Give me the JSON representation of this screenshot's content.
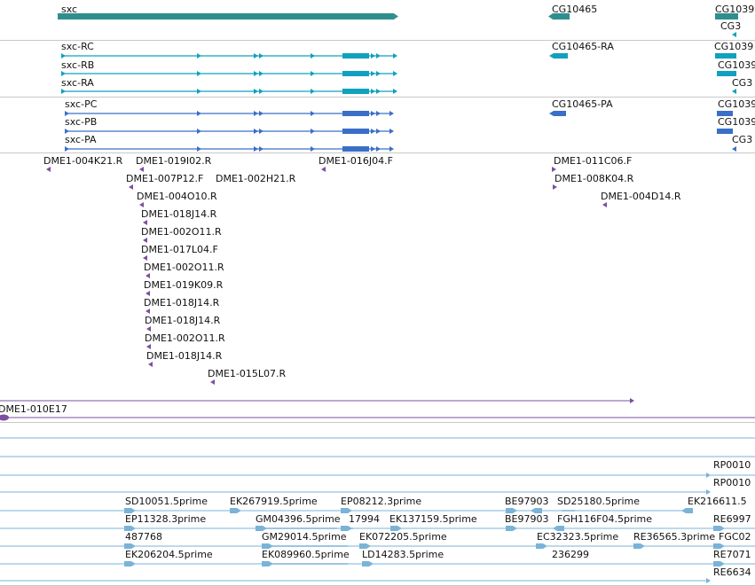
{
  "colors": {
    "gene": "#2f8f8f",
    "transcript_rna": "#11a1bd",
    "transcript_protein": "#3a6fc8",
    "cdna": "#7a4fa0",
    "est": "#7ab3d8",
    "separator": "#c8c8c8"
  },
  "gene_track": {
    "items": [
      {
        "label": "sxc",
        "x1": 65,
        "x2": 447,
        "dir": "right",
        "thick": true
      },
      {
        "label": "CG10465",
        "x1": 620,
        "x2": 642,
        "dir": "left",
        "thick": true
      },
      {
        "label": "CG1039",
        "x1": 808,
        "x2": 830,
        "dir": "right",
        "thick": true
      },
      {
        "label": "CG3",
        "x1": 824,
        "x2": 833,
        "dir": "left",
        "thick": false
      }
    ]
  },
  "rna_track": {
    "items": [
      {
        "label": "sxc-RC",
        "x1": 69,
        "x2": 447
      },
      {
        "label": "sxc-RB",
        "x1": 69,
        "x2": 447
      },
      {
        "label": "sxc-RA",
        "x1": 69,
        "x2": 447
      }
    ],
    "right_labels": [
      "CG10465-RA",
      "CG1039",
      "CG1039",
      "CG3"
    ]
  },
  "protein_track": {
    "items": [
      {
        "label": "sxc-PC",
        "x1": 73,
        "x2": 443
      },
      {
        "label": "sxc-PB",
        "x1": 73,
        "x2": 443
      },
      {
        "label": "sxc-PA",
        "x1": 73,
        "x2": 443
      }
    ],
    "right_labels": [
      "CG10465-PA",
      "CG1039",
      "CG1039",
      "CG3"
    ]
  },
  "cdna_track": {
    "labels": [
      "DME1-004K21.R",
      "DME1-019I02.R",
      "DME1-016J04.F",
      "DME1-011C06.F",
      "DME1-007P12.F",
      "DME1-002H21.R",
      "DME1-008K04.R",
      "DME1-004O10.R",
      "DME1-004D14.R",
      "DME1-018J14.R",
      "DME1-002O11.R",
      "DME1-017L04.F",
      "DME1-002O11.R",
      "DME1-019K09.R",
      "DME1-018J14.R",
      "DME1-018J14.R",
      "DME1-002O11.R",
      "DME1-018J14.R",
      "DME1-015L07.R"
    ]
  },
  "bac_track": {
    "label": "DME1-010E17"
  },
  "est_track": {
    "labels": [
      "RP0010",
      "RP0010",
      "SD10051.5prime",
      "EK267919.5prime",
      "EP08212.3prime",
      "BE97903",
      "SD25180.5prime",
      "EK216611.5",
      "EP11328.3prime",
      "GM04396.5prime",
      "17994",
      "EK137159.5prime",
      "BE97903",
      "FGH116F04.5prime",
      "RE6997",
      "487768",
      "GM29014.5prime",
      "EK072205.5prime",
      "EC32323.5prime",
      "RE36565.3prime",
      "FGC02",
      "EK206204.5prime",
      "EK089960.5prime",
      "LD14283.5prime",
      "236299",
      "RE7071",
      "RE6634"
    ]
  }
}
